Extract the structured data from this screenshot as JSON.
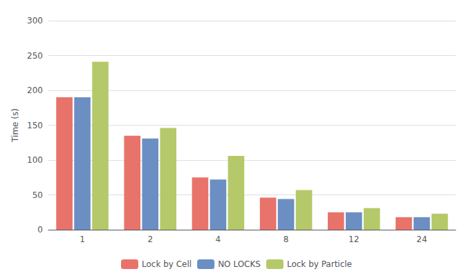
{
  "chart_data": {
    "type": "bar",
    "categories": [
      "1",
      "2",
      "4",
      "8",
      "12",
      "24"
    ],
    "series": [
      {
        "name": "Lock by Cell",
        "color": "#E8736B",
        "values": [
          190,
          135,
          75,
          46,
          25,
          18
        ]
      },
      {
        "name": "NO LOCKS",
        "color": "#6B8FC2",
        "values": [
          190,
          131,
          72,
          44,
          25,
          18
        ]
      },
      {
        "name": "Lock by Particle",
        "color": "#B5C96A",
        "values": [
          241,
          146,
          106,
          57,
          31,
          23
        ]
      }
    ],
    "ylabel": "Time (s)",
    "ylim": [
      0,
      300
    ],
    "yticks": [
      0,
      50,
      100,
      150,
      200,
      250,
      300
    ],
    "grid": true,
    "legend": "bottom"
  }
}
